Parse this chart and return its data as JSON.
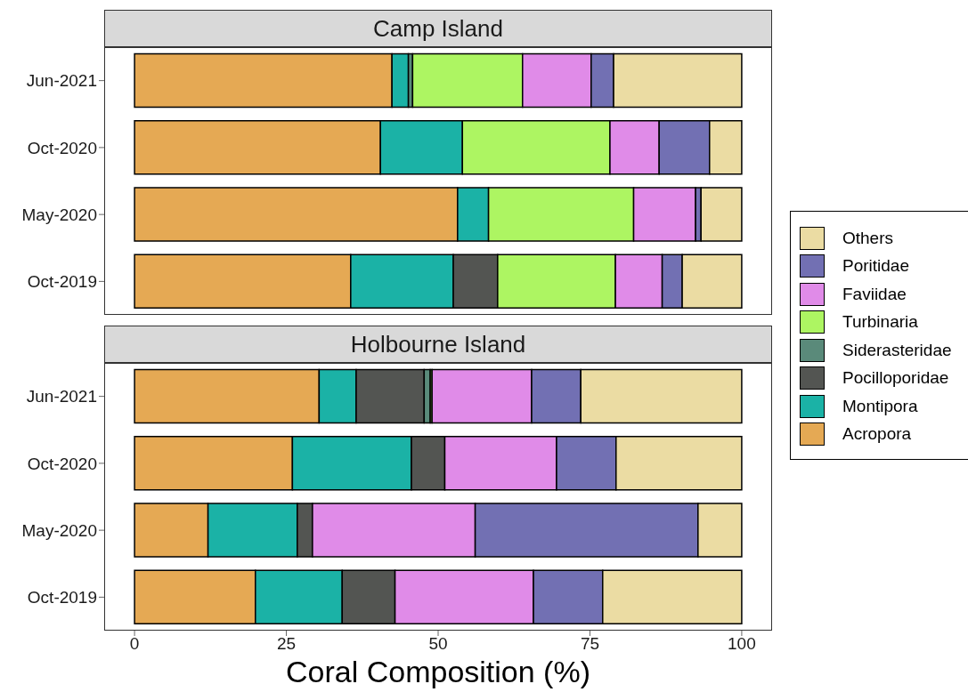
{
  "chart_data": [
    {
      "type": "bar",
      "orientation": "horizontal",
      "stacked": true,
      "title": "Camp Island",
      "categories": [
        "Jun-2021",
        "Oct-2020",
        "May-2020",
        "Oct-2019"
      ],
      "xlim": [
        -5,
        105
      ],
      "xticks": [
        0,
        25,
        50,
        75,
        100
      ],
      "tick_labels": "y",
      "legend": "right",
      "grid": false,
      "series": [
        {
          "name": "Acropora",
          "color": "#e5a954",
          "values": [
            42.4,
            40.5,
            53.2,
            35.6
          ]
        },
        {
          "name": "Montipora",
          "color": "#1bb2a6",
          "values": [
            2.7,
            13.5,
            5.1,
            16.9
          ]
        },
        {
          "name": "Pocilloporidae",
          "color": "#535552",
          "values": [
            0,
            0,
            0,
            7.3
          ]
        },
        {
          "name": "Siderasteridae",
          "color": "#5a8a7a",
          "values": [
            0.7,
            0,
            0,
            0
          ]
        },
        {
          "name": "Turbinaria",
          "color": "#adf562",
          "values": [
            18.1,
            24.3,
            23.9,
            19.4
          ]
        },
        {
          "name": "Faviidae",
          "color": "#e08be8",
          "values": [
            11.3,
            8.1,
            10.2,
            7.7
          ]
        },
        {
          "name": "Poritidae",
          "color": "#7270b3",
          "values": [
            3.7,
            8.3,
            0.9,
            3.3
          ]
        },
        {
          "name": "Others",
          "color": "#ebdca3",
          "values": [
            21.1,
            5.3,
            6.7,
            9.8
          ]
        }
      ]
    },
    {
      "type": "bar",
      "orientation": "horizontal",
      "stacked": true,
      "title": "Holbourne Island",
      "xlabel": "Coral Composition (%)",
      "categories": [
        "Jun-2021",
        "Oct-2020",
        "May-2020",
        "Oct-2019"
      ],
      "xlim": [
        -5,
        105
      ],
      "xticks": [
        0,
        25,
        50,
        75,
        100
      ],
      "grid": false,
      "series": [
        {
          "name": "Acropora",
          "color": "#e5a954",
          "values": [
            30.4,
            26.0,
            12.1,
            19.9
          ]
        },
        {
          "name": "Montipora",
          "color": "#1bb2a6",
          "values": [
            6.1,
            19.6,
            14.7,
            14.3
          ]
        },
        {
          "name": "Pocilloporidae",
          "color": "#535552",
          "values": [
            11.2,
            5.5,
            2.5,
            8.7
          ]
        },
        {
          "name": "Siderasteridae",
          "color": "#5a8a7a",
          "values": [
            1.0,
            0,
            0,
            0
          ]
        },
        {
          "name": "Turbinaria",
          "color": "#adf562",
          "values": [
            0.3,
            0,
            0,
            0
          ]
        },
        {
          "name": "Faviidae",
          "color": "#e08be8",
          "values": [
            16.4,
            18.4,
            26.8,
            22.8
          ]
        },
        {
          "name": "Poritidae",
          "color": "#7270b3",
          "values": [
            8.1,
            9.8,
            36.7,
            11.4
          ]
        },
        {
          "name": "Others",
          "color": "#ebdca3",
          "values": [
            26.5,
            20.7,
            7.2,
            22.9
          ]
        }
      ]
    }
  ]
}
